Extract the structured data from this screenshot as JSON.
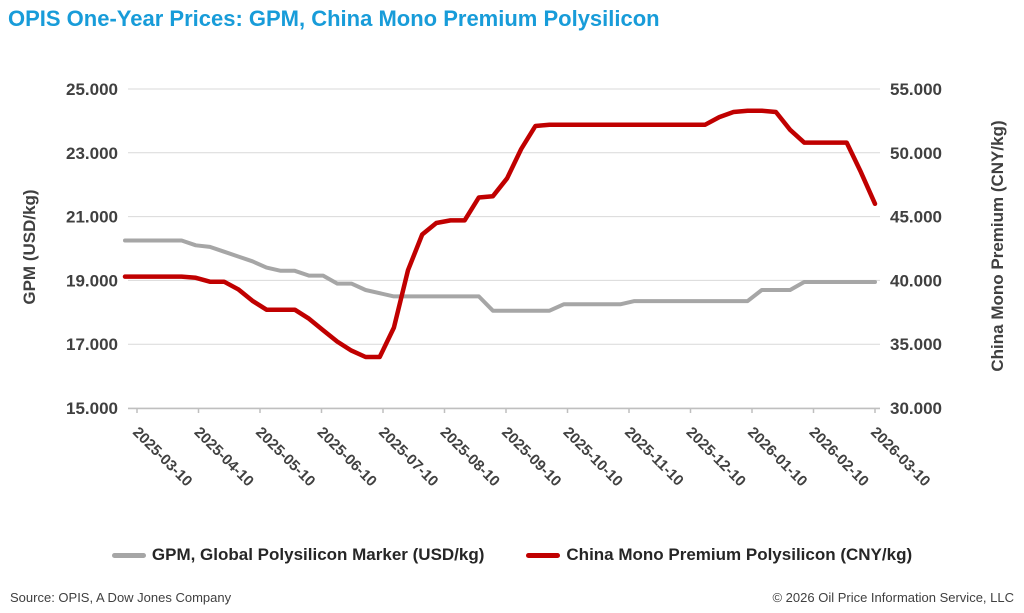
{
  "title": "OPIS One-Year Prices: GPM, China Mono Premium Polysilicon",
  "legend": [
    {
      "label": "GPM, Global Polysilicon Marker (USD/kg)",
      "color": "#A6A6A6"
    },
    {
      "label": "China Mono Premium Polysilicon (CNY/kg)",
      "color": "#C00000"
    }
  ],
  "footer": {
    "source": "Source: OPIS, A Dow Jones Company",
    "copyright": "© 2026 Oil Price Information Service, LLC"
  },
  "colors": {
    "title": "#189CD9",
    "gridline": "#D9D9D9",
    "axis_line": "#BFBFBF",
    "tick_text": "#404040",
    "gpm_line": "#A6A6A6",
    "cny_line": "#C00000"
  },
  "chart_data": {
    "type": "line",
    "title": "OPIS One-Year Prices: GPM, China Mono Premium Polysilicon",
    "grid": true,
    "legend_position": "bottom",
    "x_tick_labels": [
      "2025-03-10",
      "2025-04-10",
      "2025-05-10",
      "2025-06-10",
      "2025-07-10",
      "2025-08-10",
      "2025-09-10",
      "2025-10-10",
      "2025-11-10",
      "2025-12-10",
      "2026-01-10",
      "2026-02-10",
      "2026-03-10"
    ],
    "y_left": {
      "label": "GPM (USD/kg)",
      "min": 15,
      "max": 25,
      "ticks": [
        "25.000",
        "23.000",
        "21.000",
        "19.000",
        "17.000",
        "15.000"
      ]
    },
    "y_right": {
      "label": "China Mono Premium (CNY/kg)",
      "min": 30,
      "max": 55,
      "ticks": [
        "55.000",
        "50.000",
        "45.000",
        "40.000",
        "35.000",
        "30.000"
      ]
    },
    "dates": [
      "2025-03-04",
      "2025-03-11",
      "2025-03-18",
      "2025-03-25",
      "2025-04-01",
      "2025-04-08",
      "2025-04-15",
      "2025-04-22",
      "2025-04-29",
      "2025-05-06",
      "2025-05-13",
      "2025-05-20",
      "2025-05-27",
      "2025-06-03",
      "2025-06-10",
      "2025-06-17",
      "2025-06-24",
      "2025-07-01",
      "2025-07-08",
      "2025-07-15",
      "2025-07-22",
      "2025-07-29",
      "2025-08-05",
      "2025-08-12",
      "2025-08-19",
      "2025-08-26",
      "2025-09-02",
      "2025-09-09",
      "2025-09-16",
      "2025-09-23",
      "2025-09-30",
      "2025-10-07",
      "2025-10-14",
      "2025-10-21",
      "2025-10-28",
      "2025-11-04",
      "2025-11-11",
      "2025-11-18",
      "2025-11-25",
      "2025-12-02",
      "2025-12-09",
      "2025-12-16",
      "2025-12-23",
      "2025-12-30",
      "2026-01-06",
      "2026-01-13",
      "2026-01-20",
      "2026-01-27",
      "2026-02-03",
      "2026-02-10",
      "2026-02-17",
      "2026-02-24",
      "2026-03-03",
      "2026-03-10"
    ],
    "series": [
      {
        "name": "GPM, Global Polysilicon Marker (USD/kg)",
        "axis": "left",
        "color": "#A6A6A6",
        "width": 4,
        "values": [
          20.25,
          20.25,
          20.25,
          20.25,
          20.25,
          20.1,
          20.05,
          19.9,
          19.75,
          19.6,
          19.4,
          19.3,
          19.3,
          19.15,
          19.15,
          18.9,
          18.9,
          18.7,
          18.6,
          18.5,
          18.5,
          18.5,
          18.5,
          18.5,
          18.5,
          18.5,
          18.05,
          18.05,
          18.05,
          18.05,
          18.05,
          18.25,
          18.25,
          18.25,
          18.25,
          18.25,
          18.35,
          18.35,
          18.35,
          18.35,
          18.35,
          18.35,
          18.35,
          18.35,
          18.35,
          18.7,
          18.7,
          18.7,
          18.95,
          18.95,
          18.95,
          18.95,
          18.95,
          18.95
        ]
      },
      {
        "name": "China Mono Premium Polysilicon (CNY/kg)",
        "axis": "right",
        "color": "#C00000",
        "width": 4.5,
        "values": [
          40.3,
          40.3,
          40.3,
          40.3,
          40.3,
          40.2,
          39.9,
          39.9,
          39.3,
          38.4,
          37.7,
          37.7,
          37.7,
          37.0,
          36.1,
          35.2,
          34.5,
          34.0,
          34.0,
          36.3,
          40.8,
          43.6,
          44.5,
          44.7,
          44.7,
          46.5,
          46.6,
          48.0,
          50.3,
          52.1,
          52.2,
          52.2,
          52.2,
          52.2,
          52.2,
          52.2,
          52.2,
          52.2,
          52.2,
          52.2,
          52.2,
          52.2,
          52.8,
          53.2,
          53.3,
          53.3,
          53.2,
          51.8,
          50.8,
          50.8,
          50.8,
          50.8,
          48.5,
          46.0
        ]
      }
    ]
  }
}
